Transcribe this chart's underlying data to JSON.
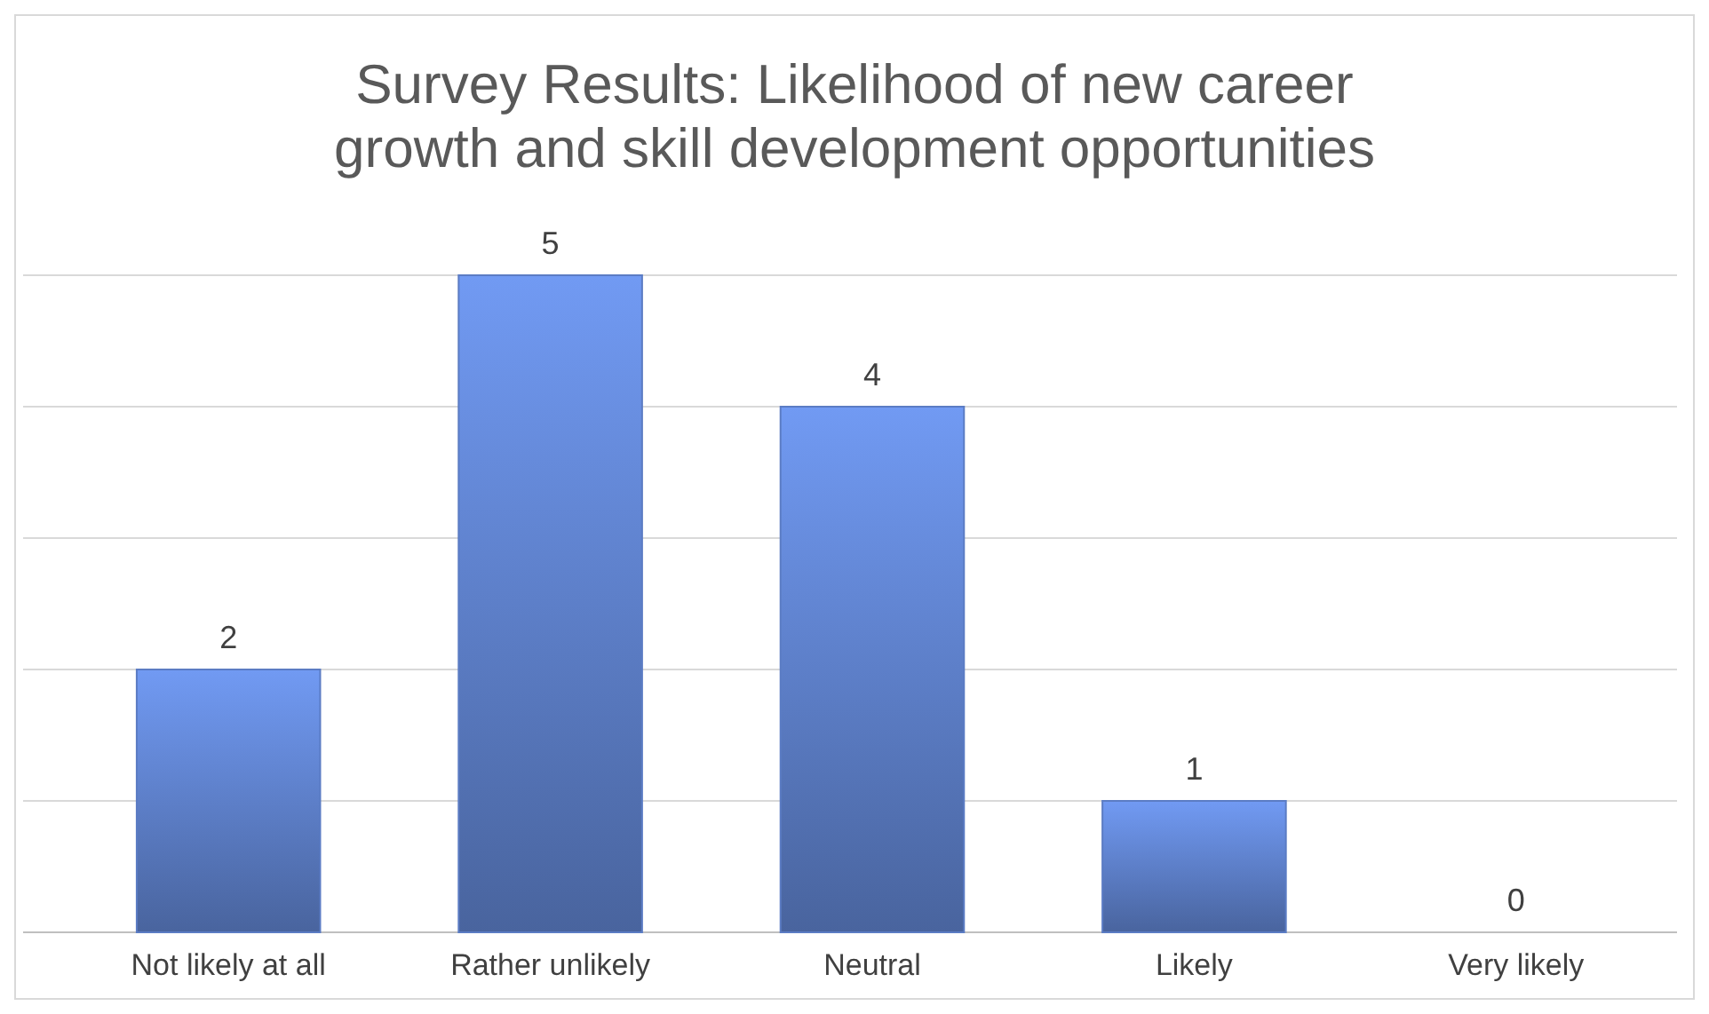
{
  "chart_data": {
    "type": "bar",
    "title": "Survey Results: Likelihood of new career growth and skill development opportunities",
    "categories": [
      "Not likely at all",
      "Rather unlikely",
      "Neutral",
      "Likely",
      "Very likely"
    ],
    "values": [
      2,
      5,
      4,
      1,
      0
    ],
    "color": "#5b7cc4",
    "ylim": [
      0,
      5
    ],
    "yticks": [
      {
        "value": 0,
        "label": null
      },
      {
        "value": 1,
        "label": null
      },
      {
        "value": 2,
        "label": null
      },
      {
        "value": 3,
        "label": null
      },
      {
        "value": 4,
        "label": null
      },
      {
        "value": 5,
        "label": null
      }
    ],
    "tick_labels": "x",
    "grid": "y",
    "data_labels": true
  }
}
